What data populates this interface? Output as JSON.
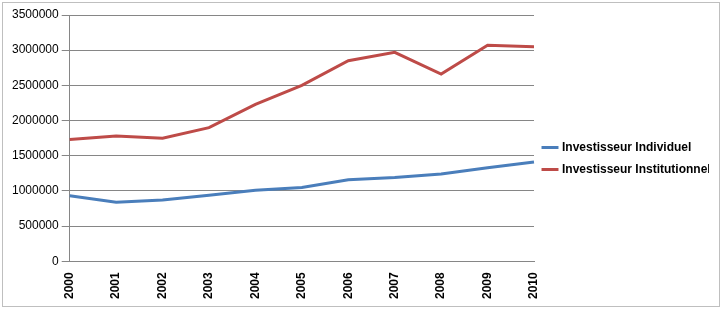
{
  "chart_data": {
    "type": "line",
    "categories": [
      "2000",
      "2001",
      "2002",
      "2003",
      "2004",
      "2005",
      "2006",
      "2007",
      "2008",
      "2009",
      "2010"
    ],
    "series": [
      {
        "name": "Investisseur Individuel",
        "color": "#4a7ebb",
        "values": [
          930000,
          840000,
          870000,
          940000,
          1010000,
          1050000,
          1160000,
          1190000,
          1240000,
          1330000,
          1410000
        ]
      },
      {
        "name": "Investisseur Institutionnel",
        "color": "#be4b48",
        "values": [
          1730000,
          1780000,
          1750000,
          1900000,
          2230000,
          2500000,
          2850000,
          2970000,
          2660000,
          3070000,
          3050000
        ]
      }
    ],
    "ylim": [
      0,
      3500000
    ],
    "yticks": [
      0,
      500000,
      1000000,
      1500000,
      2000000,
      2500000,
      3000000,
      3500000
    ],
    "grid": true,
    "legend": "right"
  }
}
